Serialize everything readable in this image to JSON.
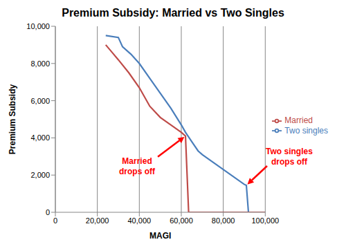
{
  "chart_data": {
    "type": "line",
    "title": "Premium Subsidy: Married vs Two Singles",
    "x_label": "MAGI",
    "y_label": "Premium Subsidy",
    "xlim": [
      0,
      100000
    ],
    "xticks": [
      0,
      {
        "value": 20000,
        "label": "20,000"
      },
      {
        "value": 40000,
        "label": "40,000"
      },
      {
        "value": 60000,
        "label": "60,000"
      },
      {
        "value": 80000,
        "label": "80,000"
      },
      {
        "value": 100000,
        "label": "100,000"
      }
    ],
    "ylim": [
      0,
      10000
    ],
    "yticks": [
      0,
      {
        "value": 2000,
        "label": "2,000"
      },
      {
        "value": 4000,
        "label": "4,000"
      },
      {
        "value": 6000,
        "label": "6,000"
      },
      {
        "value": 8000,
        "label": "8,000"
      },
      {
        "value": 10000,
        "label": "10,000"
      }
    ],
    "grid": true,
    "legend": "right",
    "series": [
      {
        "name": "Two singles",
        "color": "#4a7ebb",
        "x": [
          24000,
          30000,
          32000,
          36000,
          40000,
          45000,
          50000,
          55000,
          60000,
          62000,
          65000,
          68000,
          70000,
          80000,
          90000,
          91000,
          92000,
          100000
        ],
        "values": [
          9500,
          9400,
          8900,
          8500,
          8000,
          7200,
          6400,
          5600,
          4700,
          4300,
          3800,
          3300,
          3100,
          2300,
          1500,
          1450,
          0,
          0
        ]
      },
      {
        "name": "Married",
        "color": "#be4b48",
        "x": [
          24000,
          27000,
          30000,
          35000,
          40000,
          45000,
          50000,
          55000,
          60000,
          62000,
          63500,
          100000
        ],
        "values": [
          9000,
          8600,
          8200,
          7500,
          6700,
          5700,
          5100,
          4700,
          4300,
          4100,
          0,
          0
        ]
      }
    ],
    "annotations": [
      {
        "lines": [
          "Married",
          "drops off"
        ],
        "x": 62000,
        "y": 4100,
        "color": "#ff0000"
      },
      {
        "lines": [
          "Two singles",
          "drops off"
        ],
        "x": 91000,
        "y": 1450,
        "color": "#ff0000"
      }
    ]
  }
}
